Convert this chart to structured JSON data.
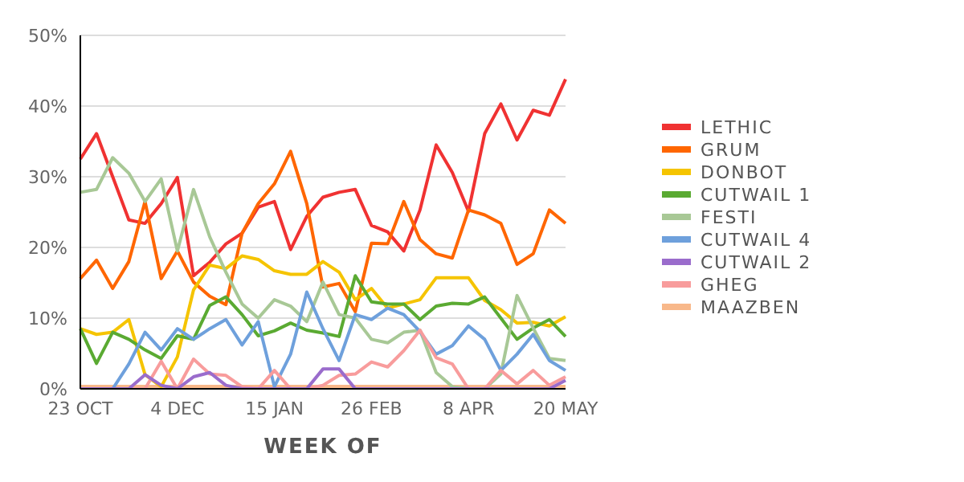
{
  "chart_data": {
    "type": "line",
    "xlabel": "WEEK OF",
    "categories": [
      "23 OCT",
      null,
      null,
      null,
      null,
      null,
      "4 DEC",
      null,
      null,
      null,
      null,
      null,
      "15 JAN",
      null,
      null,
      null,
      null,
      null,
      "26 FEB",
      null,
      null,
      null,
      null,
      null,
      "8 APR",
      null,
      null,
      null,
      null,
      null,
      "20 MAY"
    ],
    "series": [
      {
        "name": "LETHIC",
        "color": "#f03232",
        "values": [
          32.5,
          36.1,
          30,
          23.9,
          23.4,
          26.2,
          29.9,
          16,
          17.9,
          20.5,
          22,
          25.7,
          26.5,
          19.7,
          24.4,
          27.1,
          27.8,
          28.2,
          23.1,
          22.2,
          19.5,
          25.3,
          34.5,
          30.6,
          25.1,
          36.1,
          40.3,
          35.2,
          39.4,
          38.7,
          43.8
        ]
      },
      {
        "name": "GRUM",
        "color": "#ff6600",
        "values": [
          15.6,
          18.2,
          14.2,
          18,
          26.5,
          15.6,
          19.5,
          15.1,
          13.1,
          11.9,
          22,
          26.2,
          29,
          33.6,
          26.2,
          14.4,
          14.9,
          10.9,
          20.6,
          20.5,
          26.5,
          21.1,
          19.1,
          18.5,
          25.3,
          24.6,
          23.4,
          17.6,
          19.1,
          25.3,
          23.4
        ]
      },
      {
        "name": "DONBOT",
        "color": "#f5c400",
        "values": [
          8.5,
          7.7,
          8,
          9.8,
          2,
          0.3,
          4.5,
          14,
          17.5,
          17,
          18.8,
          18.3,
          16.7,
          16.2,
          16.2,
          18,
          16.5,
          12.6,
          14.2,
          11.4,
          12,
          12.6,
          15.7,
          15.7,
          15.7,
          12.5,
          11.2,
          9.3,
          9.4,
          8.9,
          10.2
        ]
      },
      {
        "name": "CUTWAIL 1",
        "color": "#5aaa32",
        "values": [
          8.5,
          3.6,
          8,
          7,
          5.5,
          4.3,
          7.5,
          7,
          11.8,
          13,
          10.5,
          7.5,
          8.2,
          9.3,
          8.3,
          7.9,
          7.4,
          16,
          12.3,
          12,
          12,
          9.8,
          11.7,
          12.1,
          12,
          13,
          10,
          7,
          8.6,
          9.8,
          7.4
        ]
      },
      {
        "name": "FESTI",
        "color": "#a8c896",
        "values": [
          27.8,
          28.2,
          32.7,
          30.5,
          26.5,
          29.7,
          19.5,
          28.2,
          21.5,
          16.5,
          12,
          10,
          12.6,
          11.7,
          9.5,
          15.1,
          10.5,
          10,
          7,
          6.5,
          8,
          8.3,
          2.3,
          0.3,
          0,
          0,
          2.1,
          13.2,
          8.6,
          4.3,
          4
        ]
      },
      {
        "name": "CUTWAIL 4",
        "color": "#6ea0dc",
        "values": [
          0,
          0,
          0,
          3.5,
          8,
          5.5,
          8.5,
          7,
          8.5,
          9.8,
          6.2,
          9.5,
          0.3,
          4.9,
          13.7,
          8.5,
          4,
          10.5,
          9.8,
          11.4,
          10.5,
          8.1,
          4.9,
          6.1,
          8.9,
          7,
          2.6,
          4.9,
          7.7,
          4,
          2.6
        ]
      },
      {
        "name": "CUTWAIL 2",
        "color": "#9a6ccc",
        "values": [
          0,
          0,
          0,
          0,
          2,
          0.5,
          0,
          1.7,
          2.3,
          0.5,
          0,
          0,
          0,
          0,
          0,
          2.8,
          2.8,
          0,
          0,
          0,
          0,
          0,
          0,
          0,
          0,
          0,
          0,
          0,
          0,
          0,
          1.2
        ]
      },
      {
        "name": "GHEG",
        "color": "#f89c9c",
        "values": [
          0,
          0,
          0,
          0,
          0,
          3.9,
          0,
          4.2,
          2.1,
          1.9,
          0.3,
          0,
          2.6,
          0,
          0,
          0.5,
          1.9,
          2.1,
          3.8,
          3.1,
          5.4,
          8.3,
          4.4,
          3.5,
          0,
          0,
          2.6,
          0.7,
          2.6,
          0.5,
          1.7
        ]
      },
      {
        "name": "MAAZBEN",
        "color": "#f8b88a",
        "values": [
          0,
          0,
          0,
          0,
          0,
          0,
          0,
          0,
          0,
          0,
          0,
          0,
          0,
          0,
          0,
          0,
          0,
          0,
          0,
          0,
          0,
          0,
          0,
          0,
          0,
          0,
          0,
          0,
          0,
          0,
          0
        ]
      }
    ],
    "ylim": [
      0,
      50
    ],
    "yticks": [
      {
        "value": 0,
        "label": "0%"
      },
      {
        "value": 10,
        "label": "10%"
      },
      {
        "value": 20,
        "label": "20%"
      },
      {
        "value": 30,
        "label": "30%"
      },
      {
        "value": 40,
        "label": "40%"
      },
      {
        "value": 50,
        "label": "50%"
      }
    ],
    "grid": "y",
    "legend": "right",
    "marker": "none",
    "line_style": "solid"
  }
}
